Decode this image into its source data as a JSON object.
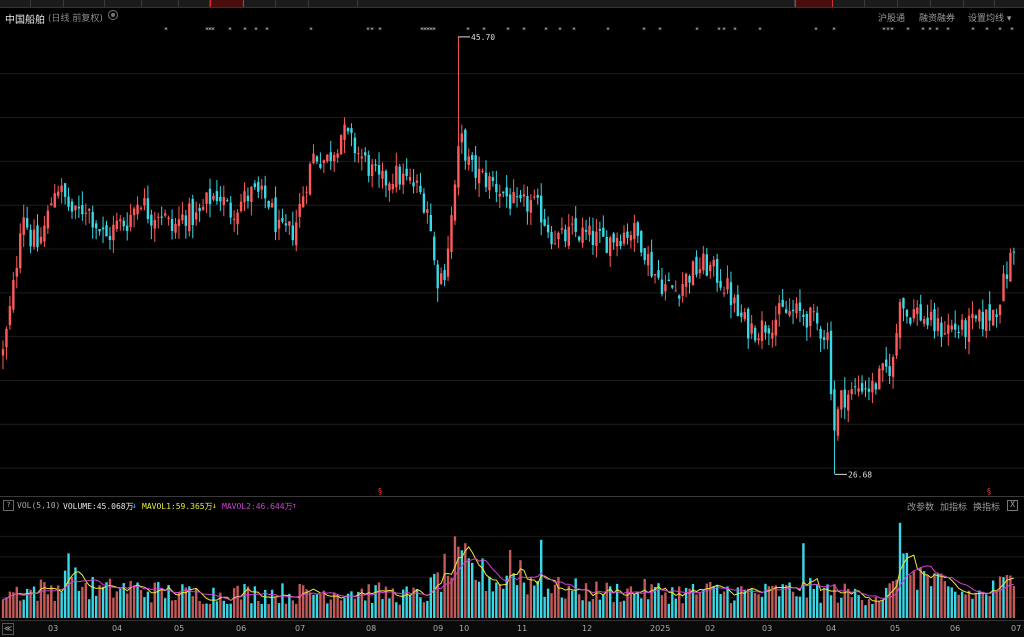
{
  "header": {
    "title": "中国船舶",
    "subtitle": "(日线 前复权)",
    "links": [
      "沪股通",
      "融资融券",
      "设置均线 ▾"
    ]
  },
  "volume_panel": {
    "help": "?",
    "label": "VOL(5,10)",
    "volume_text": "VOLUME:45.068万",
    "volume_arrow": "↓",
    "mavol1_text": "MAVOL1:59.365万",
    "mavol1_arrow": "↓",
    "mavol2_text": "MAVOL2:46.644万",
    "mavol2_arrow": "↑",
    "buttons": [
      "改参数",
      "加指标",
      "换指标"
    ],
    "close": "X"
  },
  "axis": {
    "nav": "≪",
    "months": [
      "03",
      "04",
      "05",
      "06",
      "07",
      "08",
      "09",
      "10",
      "11",
      "12",
      "2025",
      "02",
      "03",
      "04",
      "05",
      "06",
      "07"
    ]
  },
  "colors": {
    "up": "#ff5a5a",
    "down": "#39d8e6",
    "mavol1": "#e8e83a",
    "mavol2": "#d040d0",
    "marker": "#ff3b3b"
  },
  "chart_data": {
    "type": "candlestick",
    "annotations": [
      {
        "text": "45.70",
        "kind": "max"
      },
      {
        "text": "26.68",
        "kind": "min"
      }
    ],
    "price_anchors": [
      [
        0,
        31.2
      ],
      [
        8,
        33.2
      ],
      [
        16,
        35.6
      ],
      [
        22,
        38.4
      ],
      [
        30,
        37.0
      ],
      [
        38,
        36.6
      ],
      [
        46,
        37.6
      ],
      [
        56,
        39.4
      ],
      [
        64,
        38.7
      ],
      [
        75,
        37.9
      ],
      [
        86,
        38.4
      ],
      [
        96,
        37.6
      ],
      [
        106,
        36.9
      ],
      [
        116,
        37.5
      ],
      [
        128,
        37.7
      ],
      [
        140,
        38.8
      ],
      [
        150,
        37.9
      ],
      [
        160,
        38.2
      ],
      [
        172,
        37.3
      ],
      [
        185,
        38.0
      ],
      [
        198,
        37.8
      ],
      [
        208,
        38.6
      ],
      [
        218,
        38.9
      ],
      [
        230,
        38.1
      ],
      [
        240,
        38.5
      ],
      [
        252,
        38.9
      ],
      [
        268,
        38.6
      ],
      [
        280,
        37.1
      ],
      [
        294,
        37.3
      ],
      [
        306,
        39.4
      ],
      [
        314,
        40.6
      ],
      [
        326,
        40.3
      ],
      [
        336,
        41.0
      ],
      [
        342,
        41.6
      ],
      [
        356,
        40.8
      ],
      [
        368,
        40.1
      ],
      [
        380,
        39.3
      ],
      [
        394,
        39.7
      ],
      [
        404,
        39.5
      ],
      [
        416,
        39.2
      ],
      [
        428,
        38.3
      ],
      [
        436,
        35.2
      ],
      [
        444,
        35.4
      ],
      [
        452,
        38.0
      ],
      [
        458,
        40.5
      ],
      [
        462,
        41.2
      ],
      [
        470,
        40.0
      ],
      [
        482,
        39.6
      ],
      [
        494,
        39.3
      ],
      [
        506,
        38.8
      ],
      [
        518,
        38.2
      ],
      [
        530,
        38.5
      ],
      [
        542,
        38.0
      ],
      [
        552,
        37.1
      ],
      [
        562,
        36.9
      ],
      [
        574,
        37.2
      ],
      [
        590,
        37.0
      ],
      [
        604,
        36.8
      ],
      [
        618,
        37.1
      ],
      [
        632,
        37.3
      ],
      [
        642,
        36.8
      ],
      [
        652,
        35.6
      ],
      [
        664,
        34.9
      ],
      [
        676,
        34.7
      ],
      [
        690,
        35.4
      ],
      [
        704,
        35.8
      ],
      [
        716,
        35.4
      ],
      [
        728,
        34.7
      ],
      [
        738,
        33.6
      ],
      [
        748,
        33.1
      ],
      [
        758,
        33.0
      ],
      [
        770,
        33.3
      ],
      [
        782,
        33.7
      ],
      [
        794,
        33.7
      ],
      [
        806,
        33.6
      ],
      [
        816,
        33.2
      ],
      [
        828,
        32.7
      ],
      [
        834,
        28.6
      ],
      [
        842,
        30.1
      ],
      [
        852,
        30.2
      ],
      [
        862,
        30.6
      ],
      [
        872,
        30.4
      ],
      [
        882,
        31.0
      ],
      [
        894,
        31.6
      ],
      [
        900,
        34.6
      ],
      [
        906,
        33.6
      ],
      [
        916,
        33.8
      ],
      [
        928,
        33.3
      ],
      [
        940,
        33.0
      ],
      [
        952,
        33.1
      ],
      [
        962,
        32.9
      ],
      [
        972,
        33.2
      ],
      [
        984,
        33.4
      ],
      [
        996,
        33.9
      ],
      [
        1006,
        35.3
      ],
      [
        1012,
        36.3
      ]
    ],
    "events": [
      {
        "x": 458,
        "high": 45.7
      },
      {
        "x": 835,
        "low": 26.68
      },
      {
        "x": 440,
        "low": 34.9
      }
    ],
    "volume_anchors": [
      [
        0,
        38
      ],
      [
        50,
        42
      ],
      [
        70,
        55
      ],
      [
        100,
        40
      ],
      [
        130,
        44
      ],
      [
        160,
        38
      ],
      [
        200,
        35
      ],
      [
        250,
        37
      ],
      [
        300,
        36
      ],
      [
        350,
        40
      ],
      [
        400,
        34
      ],
      [
        425,
        32
      ],
      [
        440,
        60
      ],
      [
        460,
        85
      ],
      [
        470,
        70
      ],
      [
        500,
        52
      ],
      [
        520,
        58
      ],
      [
        540,
        50
      ],
      [
        560,
        42
      ],
      [
        600,
        38
      ],
      [
        640,
        40
      ],
      [
        680,
        37
      ],
      [
        720,
        40
      ],
      [
        760,
        36
      ],
      [
        800,
        42
      ],
      [
        830,
        38
      ],
      [
        860,
        34
      ],
      [
        880,
        32
      ],
      [
        900,
        48
      ],
      [
        910,
        75
      ],
      [
        930,
        55
      ],
      [
        950,
        38
      ],
      [
        980,
        35
      ],
      [
        1000,
        45
      ],
      [
        1014,
        55
      ]
    ],
    "volume_spikes": [
      [
        67,
        95
      ],
      [
        456,
        120
      ],
      [
        460,
        105
      ],
      [
        509,
        100
      ],
      [
        522,
        85
      ],
      [
        540,
        115
      ],
      [
        802,
        110
      ],
      [
        900,
        140
      ],
      [
        905,
        95
      ]
    ],
    "mavol1_text": "59.365万",
    "mavol2_text": "46.644万"
  }
}
